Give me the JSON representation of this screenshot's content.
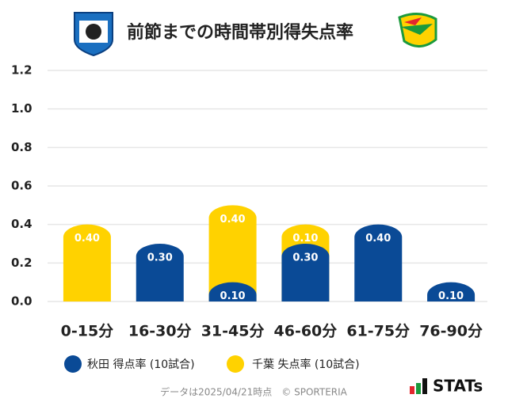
{
  "chart_data": {
    "type": "stacked_bar",
    "title": "前節までの時間帯別得失点率",
    "categories": [
      "0-15分",
      "16-30分",
      "31-45分",
      "46-60分",
      "61-75分",
      "76-90分"
    ],
    "series": [
      {
        "name": "秋田 得点率 (10試合)",
        "color": "#0a4a96",
        "values": [
          null,
          0.3,
          0.1,
          0.3,
          0.4,
          0.1
        ],
        "value_labels": [
          null,
          "0.30",
          "0.10",
          "0.30",
          "0.40",
          "0.10"
        ]
      },
      {
        "name": "千葉 失点率 (10試合)",
        "color": "#ffd200",
        "values": [
          0.4,
          null,
          0.4,
          0.1,
          null,
          null
        ],
        "value_labels": [
          "0.40",
          null,
          "0.40",
          "0.10",
          null,
          null
        ]
      }
    ],
    "ylim": [
      0,
      1.2
    ],
    "yticks": [
      {
        "value": 0,
        "label": "0.0"
      },
      0.2,
      0.4,
      0.6,
      0.8,
      {
        "value": 1,
        "label": "1.0"
      },
      1.2
    ],
    "grid": true,
    "footer": "データは2025/04/21時点　© SPORTERIA",
    "brand": "STATs"
  }
}
